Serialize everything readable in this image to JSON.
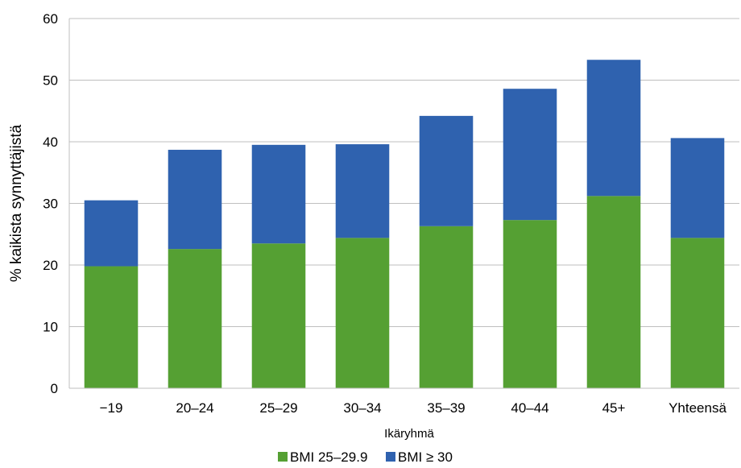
{
  "chart_data": {
    "type": "bar",
    "stacked": true,
    "title": "",
    "xlabel": "Ikäryhmä",
    "ylabel": "% kaikista synnyttäjistä",
    "ylim": [
      0,
      60
    ],
    "yticks": [
      0,
      10,
      20,
      30,
      40,
      50,
      60
    ],
    "grid": true,
    "legend_position": "bottom",
    "categories": [
      "−19",
      "20–24",
      "25–29",
      "30–34",
      "35–39",
      "40–44",
      "45+",
      "Yhteensä"
    ],
    "series": [
      {
        "name": "BMI 25–29.9",
        "color": "#55A033",
        "values": [
          19.8,
          22.6,
          23.5,
          24.4,
          26.3,
          27.3,
          31.2,
          24.4
        ]
      },
      {
        "name": "BMI ≥ 30",
        "color": "#2F62AF",
        "values": [
          10.7,
          16.1,
          16.0,
          15.2,
          17.9,
          21.3,
          22.1,
          16.2
        ]
      }
    ]
  }
}
